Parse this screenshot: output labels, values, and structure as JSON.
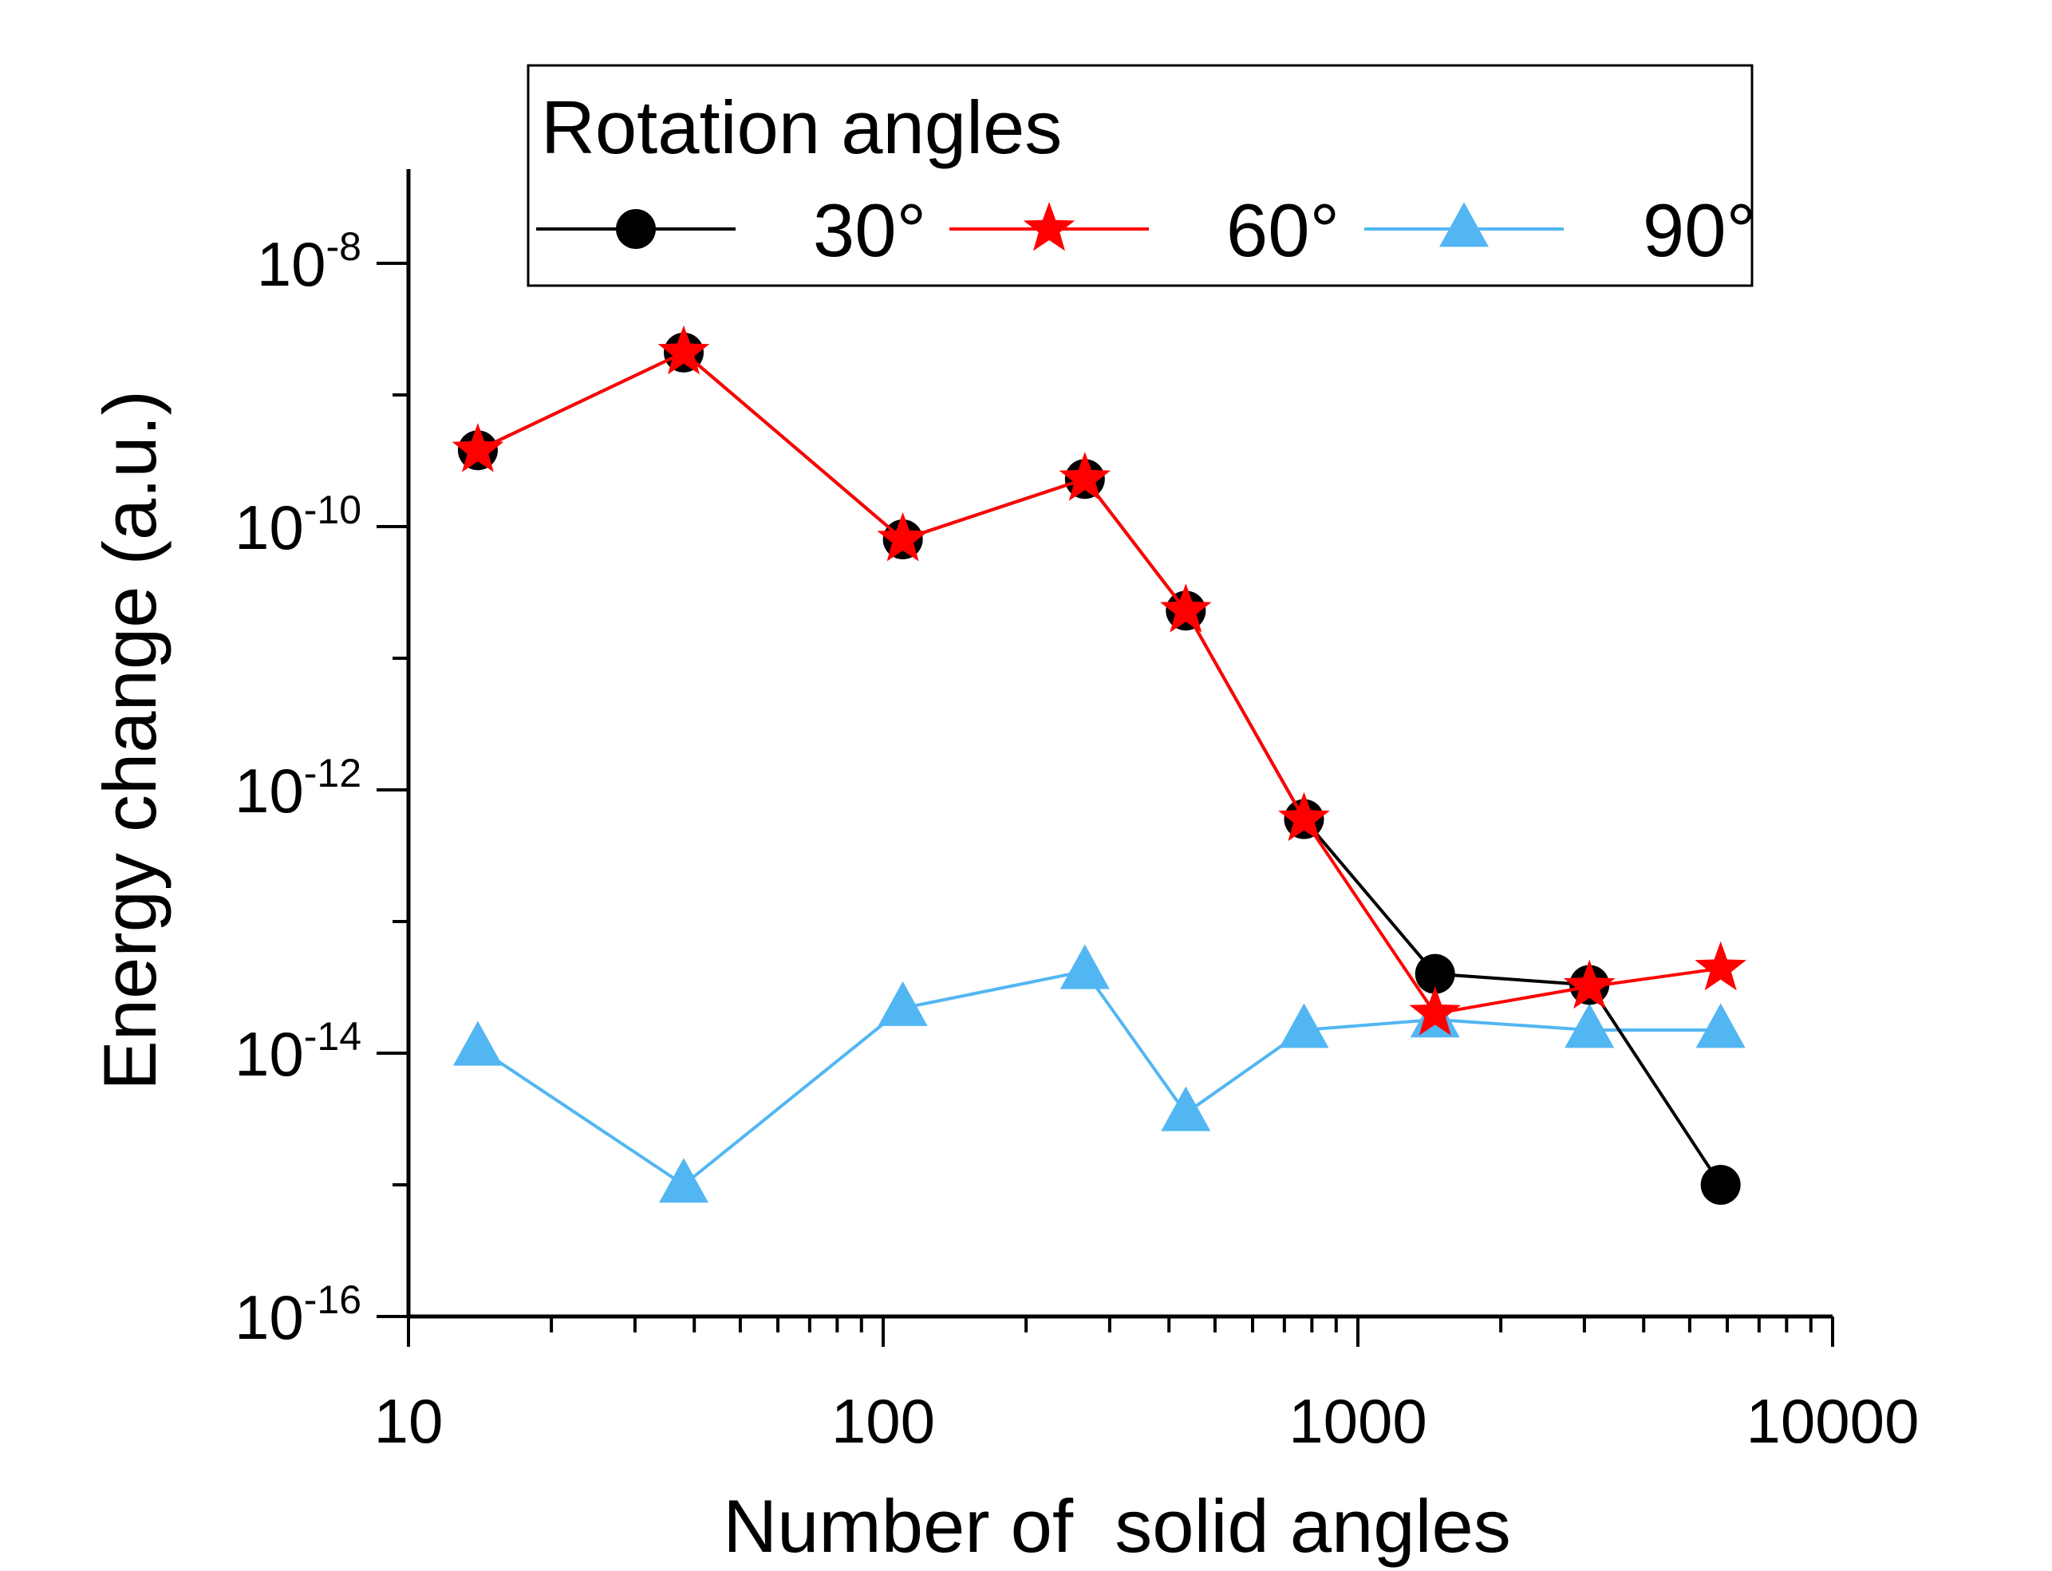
{
  "chart_data": {
    "type": "line",
    "title": "",
    "xlabel": "Number of  solid angles",
    "ylabel": "Energy change (a.u.)",
    "xscale": "log",
    "yscale": "log",
    "xlim": [
      10,
      10000
    ],
    "ylim": [
      1e-16,
      5e-08
    ],
    "x_ticks": [
      {
        "value": 10,
        "label": "10"
      },
      {
        "value": 100,
        "label": "100"
      },
      {
        "value": 1000,
        "label": "1000"
      },
      {
        "value": 10000,
        "label": "10000"
      }
    ],
    "y_ticks": [
      {
        "value": 1e-08,
        "base": "10",
        "exp": "-8"
      },
      {
        "value": 1e-10,
        "base": "10",
        "exp": "-10"
      },
      {
        "value": 1e-12,
        "base": "10",
        "exp": "-12"
      },
      {
        "value": 1e-14,
        "base": "10",
        "exp": "-14"
      },
      {
        "value": 1e-16,
        "base": "10",
        "exp": "-16"
      }
    ],
    "legend": {
      "title": "Rotation angles",
      "position": "top",
      "border": true
    },
    "series": [
      {
        "name": "30°",
        "color": "#000000",
        "marker": "circle",
        "x": [
          14,
          38,
          110,
          266,
          434,
          770,
          1454,
          3074,
          5810
        ],
        "y": [
          3.8e-10,
          2.1e-09,
          8e-11,
          2.3e-10,
          2.3e-11,
          6e-13,
          4e-14,
          3.3e-14,
          1e-15
        ]
      },
      {
        "name": "60°",
        "color": "#ff0000",
        "marker": "star",
        "x": [
          14,
          38,
          110,
          266,
          434,
          770,
          1454,
          3074,
          5810
        ],
        "y": [
          3.8e-10,
          2.1e-09,
          8e-11,
          2.3e-10,
          2.3e-11,
          6e-13,
          2e-14,
          3.2e-14,
          4.4e-14
        ]
      },
      {
        "name": "90°",
        "color": "#52b6f2",
        "marker": "triangle",
        "x": [
          14,
          38,
          110,
          266,
          434,
          770,
          1454,
          3074,
          5810
        ],
        "y": [
          1.1e-14,
          1e-15,
          2.2e-14,
          4.2e-14,
          3.5e-15,
          1.5e-14,
          1.8e-14,
          1.5e-14,
          1.5e-14
        ]
      }
    ]
  }
}
